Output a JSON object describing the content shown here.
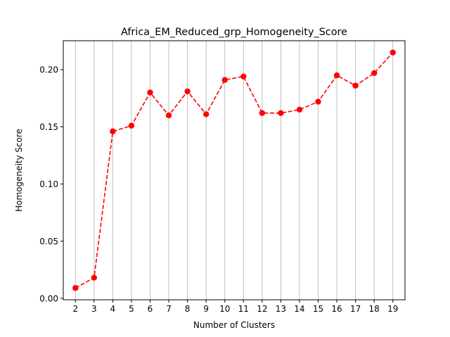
{
  "chart_data": {
    "type": "line",
    "title": "Africa_EM_Reduced_grp_Homogeneity_Score",
    "xlabel": "Number of Clusters",
    "ylabel": "Homogeneity Score",
    "x": [
      2,
      3,
      4,
      5,
      6,
      7,
      8,
      9,
      10,
      11,
      12,
      13,
      14,
      15,
      16,
      17,
      18,
      19
    ],
    "x_tick_labels": [
      "2",
      "3",
      "4",
      "5",
      "6",
      "7",
      "8",
      "9",
      "10",
      "11",
      "12",
      "13",
      "14",
      "15",
      "16",
      "17",
      "18",
      "19"
    ],
    "series": [
      {
        "values": [
          0.009,
          0.018,
          0.146,
          0.151,
          0.18,
          0.16,
          0.181,
          0.161,
          0.191,
          0.194,
          0.162,
          0.162,
          0.165,
          0.172,
          0.195,
          0.186,
          0.197,
          0.215
        ],
        "color": "#ff0000",
        "line_style": "dashed",
        "marker": "circle"
      }
    ],
    "y_ticks": [
      0.0,
      0.05,
      0.1,
      0.15,
      0.2
    ],
    "y_tick_labels": [
      "0.00",
      "0.05",
      "0.10",
      "0.15",
      "0.20"
    ],
    "xlim": [
      1.35,
      19.65
    ],
    "ylim": [
      -0.0013,
      0.2253
    ],
    "grid": "vertical",
    "grid_color": "#b0b0b0"
  }
}
